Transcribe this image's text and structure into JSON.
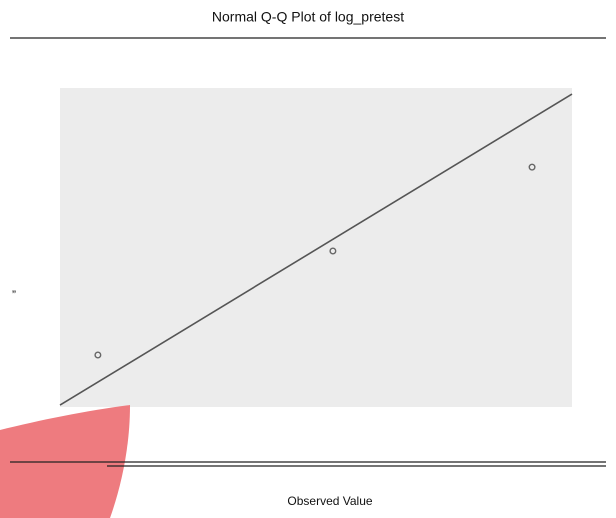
{
  "chart_data": {
    "type": "scatter",
    "title": "Normal Q-Q Plot of log_pretest",
    "x_label": "Observed Value",
    "annotations": [
      "”"
    ],
    "xlim": [
      0,
      1
    ],
    "ylim": [
      0,
      1
    ],
    "x": [
      0.074,
      0.533,
      0.922
    ],
    "values": [
      0.163,
      0.489,
      0.752
    ],
    "color": "#666666",
    "reference_line": {
      "x": [
        0,
        1
      ],
      "y": [
        0.006,
        0.981
      ],
      "color": "#555555"
    },
    "background": "#ececec"
  }
}
